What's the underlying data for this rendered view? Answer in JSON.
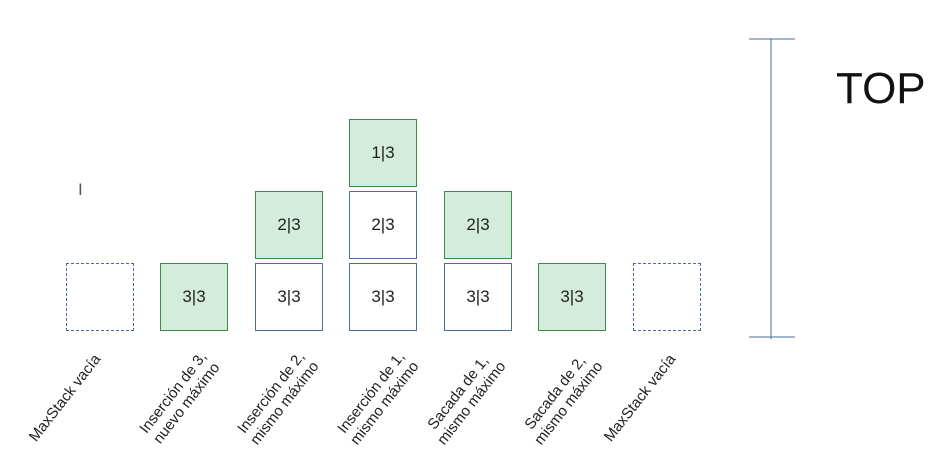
{
  "top_label": "TOP",
  "columns": [
    {
      "label_lines": [
        "MaxStack vacía"
      ],
      "cells": []
    },
    {
      "label_lines": [
        "Inserción de 3,",
        "nuevo máximo"
      ],
      "cells": [
        {
          "text": "3|3",
          "style": "green"
        }
      ]
    },
    {
      "label_lines": [
        "Inserción de 2,",
        "mismo máximo"
      ],
      "cells": [
        {
          "text": "3|3",
          "style": "white"
        },
        {
          "text": "2|3",
          "style": "green"
        }
      ]
    },
    {
      "label_lines": [
        "Inserción de 1,",
        "mismo máximo"
      ],
      "cells": [
        {
          "text": "3|3",
          "style": "white"
        },
        {
          "text": "2|3",
          "style": "white"
        },
        {
          "text": "1|3",
          "style": "green"
        }
      ]
    },
    {
      "label_lines": [
        "Sacada de 1,",
        "mismo máximo"
      ],
      "cells": [
        {
          "text": "3|3",
          "style": "white"
        },
        {
          "text": "2|3",
          "style": "green"
        }
      ]
    },
    {
      "label_lines": [
        "Sacada de 2,",
        "mismo máximo"
      ],
      "cells": [
        {
          "text": "3|3",
          "style": "green"
        }
      ]
    },
    {
      "label_lines": [
        "MaxStack vacía"
      ],
      "cells": []
    }
  ],
  "colors": {
    "top_cell": "#d4ecdc",
    "axis": "#4a6c9b"
  },
  "icons": {
    "cursor": "text-cursor-icon"
  }
}
